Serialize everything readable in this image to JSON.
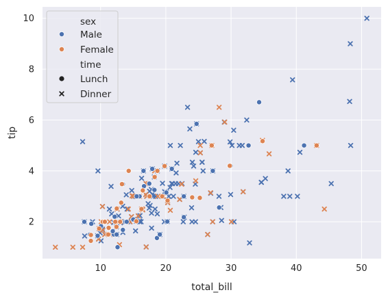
{
  "chart_data": {
    "type": "scatter",
    "xlabel": "total_bill",
    "ylabel": "tip",
    "xlim": [
      1.1,
      53.0
    ],
    "ylim": [
      0.55,
      10.45
    ],
    "xticks": [
      10,
      20,
      30,
      40,
      50
    ],
    "yticks": [
      2,
      4,
      6,
      8,
      10
    ],
    "grid": true,
    "legend_position": "top-left",
    "legend": {
      "hue_title": "sex",
      "hue_entries": [
        {
          "label": "Male",
          "color": "#4c72b0"
        },
        {
          "label": "Female",
          "color": "#dd8452"
        }
      ],
      "style_title": "time",
      "style_entries": [
        {
          "label": "Lunch",
          "marker": "circle"
        },
        {
          "label": "Dinner",
          "marker": "x"
        }
      ]
    },
    "colors": {
      "Male": "#4c72b0",
      "Female": "#dd8452",
      "background": "#eaeaf2",
      "grid": "#ffffff"
    },
    "series": [
      {
        "sex": "Male",
        "time": "Dinner",
        "points": [
          [
            50.81,
            10.0
          ],
          [
            48.27,
            9.0
          ],
          [
            39.42,
            7.58
          ],
          [
            48.17,
            6.73
          ],
          [
            23.33,
            6.5
          ],
          [
            23.68,
            5.65
          ],
          [
            28.97,
            5.92
          ],
          [
            31.27,
            5.0
          ],
          [
            32.4,
            6.0
          ],
          [
            30.4,
            5.6
          ],
          [
            25.0,
            5.15
          ],
          [
            30.14,
            5.0
          ],
          [
            31.71,
            5.0
          ],
          [
            48.33,
            5.0
          ],
          [
            7.25,
            5.15
          ],
          [
            20.69,
            5.0
          ],
          [
            22.23,
            5.0
          ],
          [
            24.59,
            4.73
          ],
          [
            40.55,
            4.73
          ],
          [
            38.73,
            4.0
          ],
          [
            21.7,
            4.3
          ],
          [
            24.06,
            4.34
          ],
          [
            24.27,
            4.19
          ],
          [
            35.26,
            3.7
          ],
          [
            34.63,
            3.55
          ],
          [
            34.65,
            3.55
          ],
          [
            38.07,
            3.0
          ],
          [
            39.0,
            3.0
          ],
          [
            40.17,
            3.0
          ],
          [
            45.35,
            3.5
          ],
          [
            27.2,
            4.0
          ],
          [
            16.29,
            3.71
          ],
          [
            17.51,
            3.2
          ],
          [
            19.82,
            3.18
          ],
          [
            21.58,
            3.92
          ],
          [
            15.77,
            2.23
          ],
          [
            19.08,
            1.5
          ],
          [
            18.43,
            3.0
          ],
          [
            21.01,
            3.5
          ],
          [
            23.95,
            2.55
          ],
          [
            20.08,
            3.15
          ],
          [
            20.23,
            2.01
          ],
          [
            15.01,
            2.09
          ],
          [
            13.94,
            3.06
          ],
          [
            17.92,
            4.08
          ],
          [
            17.29,
            2.71
          ],
          [
            14.73,
            2.2
          ],
          [
            10.27,
            1.71
          ],
          [
            9.55,
            1.45
          ],
          [
            12.46,
            1.5
          ],
          [
            11.87,
            1.63
          ],
          [
            8.77,
            2.0
          ],
          [
            10.34,
            1.66
          ],
          [
            12.74,
            2.01
          ],
          [
            13.0,
            2.0
          ],
          [
            16.97,
            3.5
          ],
          [
            15.53,
            3.0
          ],
          [
            10.65,
            1.5
          ],
          [
            13.37,
            2.0
          ],
          [
            12.69,
            2.0
          ],
          [
            16.45,
            2.47
          ],
          [
            20.29,
            2.75
          ],
          [
            15.06,
            3.0
          ],
          [
            22.49,
            3.5
          ],
          [
            17.78,
            3.27
          ],
          [
            25.29,
            4.71
          ],
          [
            20.65,
            3.35
          ],
          [
            20.9,
            3.5
          ],
          [
            24.52,
            3.48
          ],
          [
            26.88,
            3.12
          ],
          [
            29.85,
            5.14
          ],
          [
            32.83,
            1.17
          ],
          [
            31.85,
            3.18
          ],
          [
            30.06,
            2.0
          ],
          [
            29.93,
            3.07
          ],
          [
            28.44,
            2.56
          ],
          [
            24.01,
            2.0
          ],
          [
            25.56,
            4.34
          ],
          [
            22.82,
            2.18
          ],
          [
            11.61,
            3.39
          ],
          [
            10.07,
            1.25
          ],
          [
            7.51,
            2.0
          ],
          [
            15.36,
            1.64
          ],
          [
            21.16,
            3.0
          ],
          [
            16.0,
            2.0
          ],
          [
            13.81,
            2.0
          ],
          [
            17.07,
            3.0
          ],
          [
            14.83,
            3.02
          ],
          [
            20.27,
            2.83
          ],
          [
            9.68,
            1.32
          ],
          [
            13.42,
            1.58
          ],
          [
            12.43,
            1.8
          ],
          [
            14.07,
            2.5
          ],
          [
            20.92,
            4.08
          ],
          [
            18.24,
            3.76
          ],
          [
            30.46,
            2.0
          ],
          [
            26.41,
            1.5
          ],
          [
            28.55,
            2.05
          ],
          [
            18.04,
            3.0
          ],
          [
            12.54,
            2.5
          ],
          [
            9.94,
            1.56
          ],
          [
            25.56,
            4.34
          ],
          [
            19.49,
            3.51
          ],
          [
            19.77,
            2.0
          ],
          [
            27.18,
            2.0
          ],
          [
            22.12,
            2.88
          ],
          [
            24.55,
            2.0
          ],
          [
            14.48,
            2.0
          ],
          [
            17.59,
            2.64
          ],
          [
            16.99,
            1.01
          ],
          [
            11.69,
            2.31
          ],
          [
            13.04,
            1.96
          ],
          [
            12.02,
            1.97
          ],
          [
            7.56,
            1.44
          ],
          [
            15.38,
            3.0
          ],
          [
            9.6,
            4.0
          ],
          [
            20.45,
            3.0
          ],
          [
            14.78,
            3.23
          ],
          [
            10.29,
            2.6
          ],
          [
            13.13,
            2.0
          ],
          [
            17.46,
            2.54
          ],
          [
            18.71,
            4.0
          ],
          [
            21.5,
            3.5
          ],
          [
            19.44,
            3.0
          ],
          [
            22.76,
            3.0
          ],
          [
            12.76,
            2.23
          ],
          [
            18.35,
            2.5
          ],
          [
            15.69,
            3.0
          ],
          [
            24.71,
            5.85
          ],
          [
            21.93,
            3.5
          ],
          [
            17.81,
            2.34
          ],
          [
            19.81,
            4.19
          ],
          [
            28.15,
            3.0
          ],
          [
            16.58,
            4.0
          ],
          [
            17.92,
            3.08
          ],
          [
            14.15,
            2.0
          ],
          [
            9.78,
            1.73
          ],
          [
            15.48,
            2.02
          ],
          [
            18.69,
            2.31
          ],
          [
            16.93,
            3.07
          ],
          [
            25.71,
            4.0
          ],
          [
            22.67,
            2.0
          ],
          [
            17.82,
            1.75
          ],
          [
            25.89,
            5.16
          ],
          [
            16.04,
            2.24
          ],
          [
            11.35,
            2.5
          ],
          [
            15.98,
            2.03
          ],
          [
            13.39,
            2.61
          ],
          [
            16.21,
            2.0
          ]
        ]
      },
      {
        "sex": "Female",
        "time": "Dinner",
        "points": [
          [
            16.99,
            1.01
          ],
          [
            24.59,
            3.61
          ],
          [
            14.83,
            3.02
          ],
          [
            10.33,
            1.67
          ],
          [
            16.97,
            3.5
          ],
          [
            20.29,
            2.75
          ],
          [
            15.77,
            2.23
          ],
          [
            19.65,
            3.0
          ],
          [
            15.06,
            3.0
          ],
          [
            20.69,
            2.45
          ],
          [
            16.93,
            3.07
          ],
          [
            10.29,
            2.6
          ],
          [
            34.81,
            5.2
          ],
          [
            26.41,
            1.5
          ],
          [
            16.45,
            2.47
          ],
          [
            3.07,
            1.0
          ],
          [
            17.07,
            3.0
          ],
          [
            26.86,
            3.14
          ],
          [
            25.28,
            5.0
          ],
          [
            14.73,
            2.2
          ],
          [
            10.65,
            1.5
          ],
          [
            12.54,
            2.5
          ],
          [
            9.78,
            1.73
          ],
          [
            43.11,
            5.0
          ],
          [
            28.17,
            6.5
          ],
          [
            14.26,
            2.5
          ],
          [
            22.42,
            3.48
          ],
          [
            15.98,
            3.0
          ],
          [
            11.59,
            1.5
          ],
          [
            30.06,
            2.0
          ],
          [
            25.29,
            4.71
          ],
          [
            29.03,
            5.92
          ],
          [
            27.05,
            5.0
          ],
          [
            17.31,
            3.5
          ],
          [
            44.3,
            2.5
          ],
          [
            35.83,
            4.67
          ],
          [
            27.18,
            2.0
          ],
          [
            22.42,
            3.48
          ],
          [
            12.03,
            1.5
          ],
          [
            7.25,
            1.0
          ],
          [
            18.78,
            3.0
          ],
          [
            10.09,
            2.0
          ],
          [
            5.75,
            1.0
          ],
          [
            22.12,
            2.88
          ],
          [
            20.27,
            2.83
          ],
          [
            31.85,
            3.18
          ],
          [
            13.03,
            2.0
          ],
          [
            18.28,
            4.0
          ],
          [
            16.4,
            2.5
          ],
          [
            12.9,
            1.1
          ],
          [
            14.52,
            2.0
          ],
          [
            11.38,
            2.0
          ],
          [
            9.68,
            1.32
          ],
          [
            16.27,
            2.5
          ]
        ]
      },
      {
        "sex": "Male",
        "time": "Lunch",
        "points": [
          [
            34.3,
            6.7
          ],
          [
            41.19,
            5.0
          ],
          [
            32.68,
            5.0
          ],
          [
            24.71,
            5.85
          ],
          [
            29.93,
            4.2
          ],
          [
            27.2,
            4.0
          ],
          [
            20.92,
            4.08
          ],
          [
            16.58,
            4.0
          ],
          [
            16.66,
            3.4
          ],
          [
            18.26,
            3.25
          ],
          [
            17.47,
            3.5
          ],
          [
            22.76,
            3.0
          ],
          [
            15.98,
            3.0
          ],
          [
            20.23,
            2.01
          ],
          [
            12.74,
            2.01
          ],
          [
            10.34,
            2.0
          ],
          [
            18.29,
            3.76
          ],
          [
            17.92,
            4.08
          ],
          [
            9.55,
            1.45
          ],
          [
            12.03,
            1.5
          ],
          [
            8.58,
            1.92
          ],
          [
            7.51,
            2.0
          ],
          [
            13.42,
            3.48
          ],
          [
            20.08,
            3.15
          ],
          [
            15.01,
            2.09
          ],
          [
            12.16,
            2.2
          ],
          [
            13.42,
            1.68
          ],
          [
            8.35,
            1.5
          ],
          [
            18.64,
            1.36
          ],
          [
            11.87,
            1.63
          ],
          [
            10.07,
            1.83
          ],
          [
            12.6,
            1.0
          ],
          [
            22.76,
            2.18
          ],
          [
            28.17,
            2.56
          ],
          [
            16.47,
            3.23
          ],
          [
            13.81,
            2.0
          ],
          [
            14.0,
            2.0
          ],
          [
            15.53,
            3.0
          ],
          [
            19.08,
            1.5
          ],
          [
            12.46,
            1.5
          ]
        ]
      },
      {
        "sex": "Female",
        "time": "Lunch",
        "points": [
          [
            43.11,
            5.0
          ],
          [
            34.83,
            5.17
          ],
          [
            29.8,
            4.2
          ],
          [
            27.03,
            5.0
          ],
          [
            19.81,
            4.19
          ],
          [
            17.51,
            3.0
          ],
          [
            13.28,
            3.48
          ],
          [
            18.71,
            4.0
          ],
          [
            16.47,
            3.23
          ],
          [
            24.04,
            2.96
          ],
          [
            25.21,
            2.94
          ],
          [
            20.27,
            2.83
          ],
          [
            19.44,
            3.0
          ],
          [
            16.27,
            2.5
          ],
          [
            11.17,
            1.5
          ],
          [
            8.51,
            1.25
          ],
          [
            10.33,
            2.0
          ],
          [
            12.46,
            2.0
          ],
          [
            13.0,
            2.0
          ],
          [
            8.52,
            1.48
          ],
          [
            12.26,
            2.0
          ],
          [
            10.65,
            2.0
          ],
          [
            14.31,
            4.0
          ],
          [
            18.29,
            3.76
          ],
          [
            15.48,
            2.02
          ],
          [
            9.78,
            1.73
          ],
          [
            12.43,
            1.8
          ],
          [
            13.16,
            2.75
          ],
          [
            11.24,
            1.76
          ],
          [
            12.48,
            2.52
          ]
        ]
      }
    ]
  }
}
